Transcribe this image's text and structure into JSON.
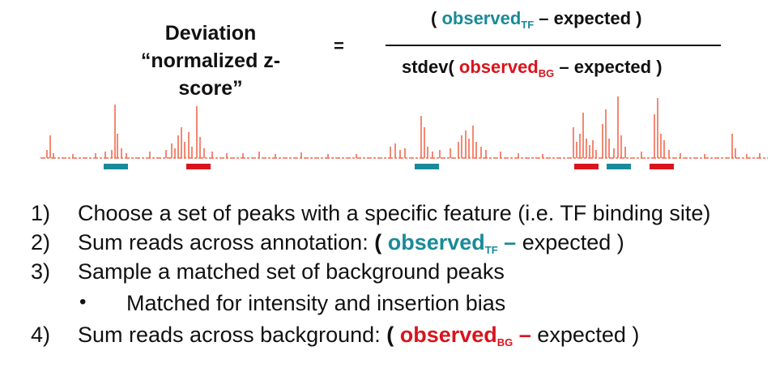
{
  "header": {
    "title_line1": "Deviation",
    "title_line2": "“normalized z-score”",
    "equals": "=",
    "numerator": {
      "open": "( ",
      "observed": "observed",
      "sub": "TF",
      "rest": " – expected )"
    },
    "denominator": {
      "open": "stdev( ",
      "observed": "observed",
      "sub": "BG",
      "rest": " – expected )"
    }
  },
  "colors": {
    "tf": "#1a8a99",
    "bg": "#d9141c",
    "signal": "#f26b50"
  },
  "track": {
    "peaks": [
      [
        58,
        10
      ],
      [
        62,
        28
      ],
      [
        66,
        6
      ],
      [
        90,
        5
      ],
      [
        118,
        6
      ],
      [
        130,
        8
      ],
      [
        138,
        10
      ],
      [
        142,
        66
      ],
      [
        145,
        30
      ],
      [
        150,
        12
      ],
      [
        156,
        6
      ],
      [
        185,
        8
      ],
      [
        205,
        10
      ],
      [
        212,
        18
      ],
      [
        216,
        12
      ],
      [
        220,
        28
      ],
      [
        224,
        38
      ],
      [
        228,
        20
      ],
      [
        233,
        32
      ],
      [
        237,
        14
      ],
      [
        243,
        64
      ],
      [
        247,
        26
      ],
      [
        252,
        12
      ],
      [
        262,
        8
      ],
      [
        280,
        6
      ],
      [
        300,
        6
      ],
      [
        320,
        8
      ],
      [
        340,
        5
      ],
      [
        372,
        7
      ],
      [
        405,
        5
      ],
      [
        440,
        5
      ],
      [
        482,
        14
      ],
      [
        488,
        18
      ],
      [
        494,
        10
      ],
      [
        500,
        12
      ],
      [
        520,
        52
      ],
      [
        524,
        38
      ],
      [
        528,
        14
      ],
      [
        534,
        8
      ],
      [
        543,
        10
      ],
      [
        556,
        12
      ],
      [
        566,
        20
      ],
      [
        570,
        28
      ],
      [
        575,
        34
      ],
      [
        579,
        24
      ],
      [
        584,
        40
      ],
      [
        588,
        20
      ],
      [
        594,
        14
      ],
      [
        600,
        10
      ],
      [
        618,
        8
      ],
      [
        640,
        6
      ],
      [
        670,
        5
      ],
      [
        708,
        38
      ],
      [
        712,
        20
      ],
      [
        716,
        30
      ],
      [
        720,
        56
      ],
      [
        724,
        24
      ],
      [
        728,
        16
      ],
      [
        732,
        22
      ],
      [
        736,
        10
      ],
      [
        744,
        42
      ],
      [
        748,
        60
      ],
      [
        752,
        24
      ],
      [
        758,
        12
      ],
      [
        763,
        76
      ],
      [
        767,
        28
      ],
      [
        772,
        14
      ],
      [
        792,
        8
      ],
      [
        808,
        54
      ],
      [
        812,
        74
      ],
      [
        816,
        30
      ],
      [
        820,
        22
      ],
      [
        826,
        10
      ],
      [
        840,
        6
      ],
      [
        870,
        5
      ],
      [
        904,
        30
      ],
      [
        908,
        12
      ],
      [
        922,
        5
      ],
      [
        938,
        6
      ]
    ],
    "tf_peaks": [
      143,
      527,
      764
    ],
    "bg_peaks": [
      245,
      724,
      817
    ]
  },
  "steps": [
    {
      "num": "1)",
      "text": "Choose a set of peaks with a specific feature (i.e. TF binding site)"
    },
    {
      "num": "2)",
      "text": "Sum reads across annotation: ",
      "open": "( ",
      "observed": "observed",
      "sub": "TF",
      "dash": " – ",
      "rest": "expected )"
    },
    {
      "num": "3)",
      "text": "Sample a matched set of background peaks"
    },
    {
      "bullet": "•",
      "text": "Matched for intensity and insertion bias"
    },
    {
      "num": "4)",
      "text": "Sum reads across background: ",
      "open": "( ",
      "observed": "observed",
      "sub": "BG",
      "dash": " – ",
      "rest": "expected )"
    }
  ]
}
